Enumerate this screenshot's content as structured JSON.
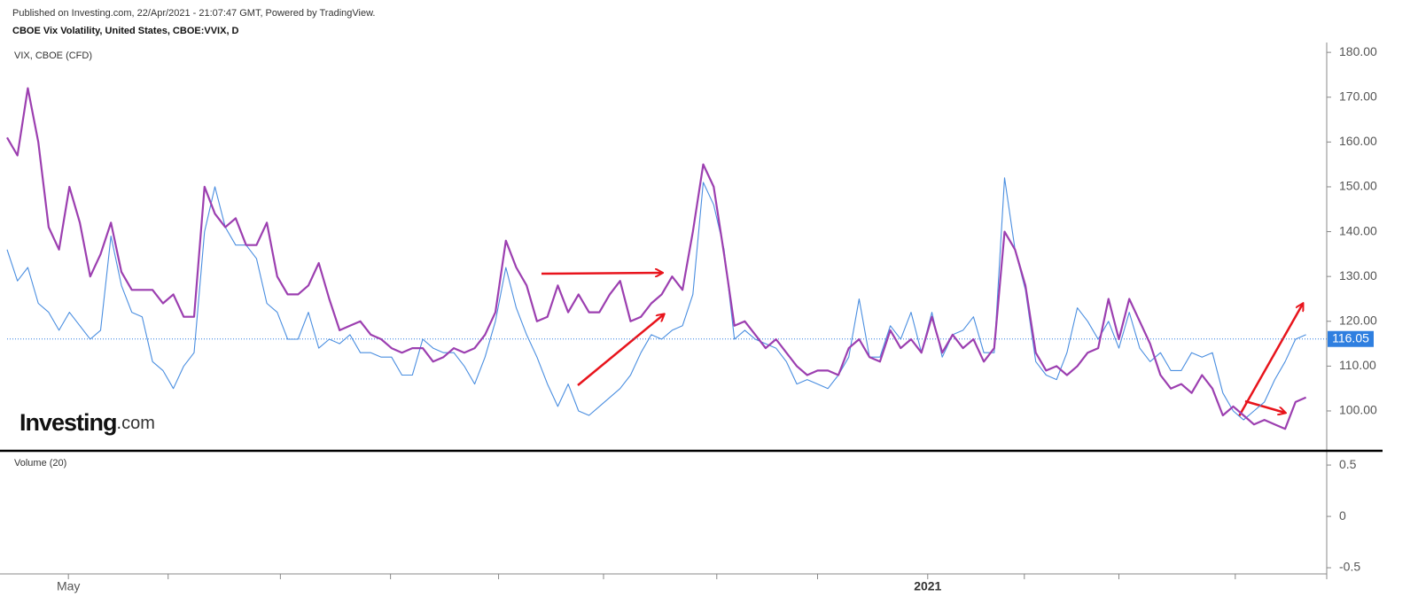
{
  "header": {
    "published": "Published on Investing.com, 22/Apr/2021 - 21:07:47 GMT, Powered by TradingView.",
    "title": "CBOE Vix Volatility, United States, CBOE:VVIX, D"
  },
  "logo": {
    "brand": "Investing",
    "suffix": ".com"
  },
  "chart_data": [
    {
      "type": "line",
      "xlim": [
        0,
        127
      ],
      "ylim": [
        91.3,
        182.2
      ],
      "yticks": [
        {
          "value": 100,
          "label": "100.00"
        },
        {
          "value": 110,
          "label": "110.00"
        },
        {
          "value": 120,
          "label": "120.00"
        },
        {
          "value": 130,
          "label": "130.00"
        },
        {
          "value": 140,
          "label": "140.00"
        },
        {
          "value": 150,
          "label": "150.00"
        },
        {
          "value": 160,
          "label": "160.00"
        },
        {
          "value": 170,
          "label": "170.00"
        },
        {
          "value": 180,
          "label": "180.00"
        }
      ],
      "xticks": [
        {
          "value": 5.9,
          "label": "May"
        },
        {
          "value": 88.6,
          "label": "2021"
        }
      ],
      "xtick_marks": [
        15.5,
        26.3,
        36.9,
        47.3,
        57.4,
        68.3,
        78,
        97.9,
        107,
        118.2,
        127
      ],
      "last_value": 116.05,
      "last_value_color": "#2f7fe0",
      "series": [
        {
          "color": "#9c3fb0",
          "values": [
            161,
            157,
            172,
            160,
            141,
            136,
            150,
            142,
            130,
            135,
            142,
            131,
            127,
            127,
            127,
            124,
            126,
            121,
            121,
            150,
            144,
            141,
            143,
            137,
            137,
            142,
            130,
            126,
            126,
            128,
            133,
            125,
            118,
            119,
            120,
            117,
            116,
            114,
            113,
            114,
            114,
            111,
            112,
            114,
            113,
            114,
            117,
            122,
            138,
            132,
            128,
            120,
            121,
            128,
            122,
            126,
            122,
            122,
            126,
            129,
            120,
            121,
            124,
            126,
            130,
            127,
            140,
            155,
            150,
            135,
            119,
            120,
            117,
            114,
            116,
            113,
            110,
            108,
            109,
            109,
            108,
            114,
            116,
            112,
            111,
            118,
            114,
            116,
            113,
            121,
            113,
            117,
            114,
            116,
            111,
            114,
            140,
            136,
            128,
            113,
            109,
            110,
            108,
            110,
            113,
            114,
            125,
            116,
            125,
            120,
            115,
            108,
            105,
            106,
            104,
            108,
            105,
            99,
            101,
            99,
            97,
            98,
            97,
            96,
            102,
            103
          ]
        },
        {
          "name": "VIX, CBOE (CFD)",
          "color": "#4a8ee0",
          "values": [
            136,
            129,
            132,
            124,
            122,
            118,
            122,
            119,
            116,
            118,
            139,
            128,
            122,
            121,
            111,
            109,
            105,
            110,
            113,
            140,
            150,
            141,
            137,
            137,
            134,
            124,
            122,
            116,
            116,
            122,
            114,
            116,
            115,
            117,
            113,
            113,
            112,
            112,
            108,
            108,
            116,
            114,
            113,
            113,
            110,
            106,
            112,
            120,
            132,
            123,
            117,
            112,
            106,
            101,
            106,
            100,
            99,
            101,
            103,
            105,
            108,
            113,
            117,
            116,
            118,
            119,
            126,
            151,
            146,
            136,
            116,
            118,
            116,
            115,
            114,
            111,
            106,
            107,
            106,
            105,
            108,
            112,
            125,
            112,
            112,
            119,
            116,
            122,
            113,
            122,
            112,
            117,
            118,
            121,
            113,
            113,
            152,
            136,
            127,
            111,
            108,
            107,
            113,
            123,
            120,
            116,
            120,
            114,
            122,
            114,
            111,
            113,
            109,
            109,
            113,
            112,
            113,
            104,
            100,
            98,
            100,
            102,
            107,
            111,
            116,
            117
          ]
        }
      ]
    },
    {
      "type": "volume",
      "label": "Volume (20)",
      "ylim": [
        -0.56,
        0.63
      ],
      "yticks": [
        -0.5,
        0,
        0.5
      ]
    }
  ]
}
